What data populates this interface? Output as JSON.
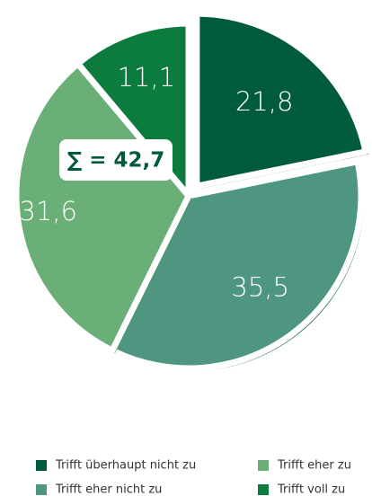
{
  "chart_data": {
    "type": "pie",
    "categories": [
      "Trifft überhaupt nicht zu",
      "Trifft eher nicht zu",
      "Trifft eher zu",
      "Trifft voll zu"
    ],
    "values": [
      21.8,
      35.5,
      31.6,
      11.1
    ],
    "value_labels": [
      "21,8",
      "35,5",
      "31,6",
      "11,1"
    ],
    "colors": [
      "#005a3c",
      "#4f9682",
      "#6aae78",
      "#0b7b3e"
    ],
    "exploded": [
      true,
      false,
      false,
      false
    ],
    "annotation": "∑ = 42,7",
    "legend": "bottom"
  }
}
